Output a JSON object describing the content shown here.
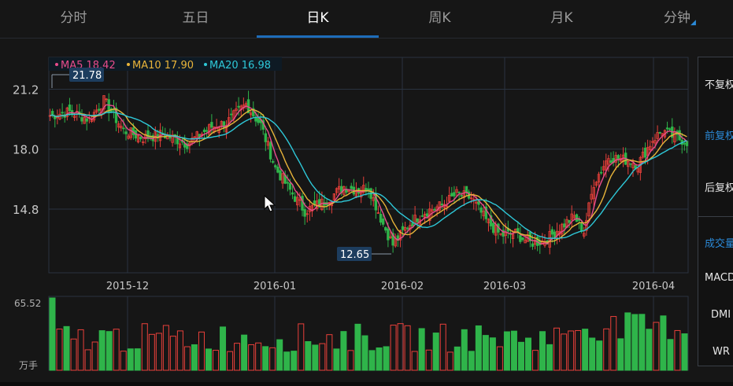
{
  "tabs": [
    {
      "label": "分时",
      "active": false
    },
    {
      "label": "五日",
      "active": false
    },
    {
      "label": "日K",
      "active": true
    },
    {
      "label": "周K",
      "active": false
    },
    {
      "label": "月K",
      "active": false
    },
    {
      "label": "分钟",
      "active": false,
      "has_dropdown": true
    }
  ],
  "legend": {
    "ma5": "MA5 18.42",
    "ma10": "MA10 17.90",
    "ma20": "MA20 16.98"
  },
  "colors": {
    "up": "#e8403a",
    "down": "#2fb44a",
    "ma5": "#e84c8c",
    "ma10": "#e8b43a",
    "ma20": "#2ec8d8",
    "accent": "#1e6db9",
    "grid": "#2a3340"
  },
  "price_axis": {
    "ticks": [
      "21.2",
      "18.0",
      "14.8"
    ],
    "values": [
      21.2,
      18.0,
      14.8
    ]
  },
  "date_axis": [
    "2015-12",
    "2016-01",
    "2016-02",
    "2016-03",
    "2016-04"
  ],
  "max_label": "21.78",
  "min_label": "12.65",
  "volume": {
    "max_label": "65.52",
    "unit_label": "万手"
  },
  "side_panel": {
    "items": [
      "不复权",
      "前复权",
      "后复权"
    ],
    "indicators": [
      "成交量",
      "MACD",
      "DMI",
      "WR"
    ]
  },
  "chart_data": {
    "type": "candlestick",
    "ylim": [
      11.4,
      22.9
    ],
    "ma_series": [
      {
        "name": "MA5",
        "value": 18.42
      },
      {
        "name": "MA10",
        "value": 17.9
      },
      {
        "name": "MA20",
        "value": 16.98
      }
    ],
    "max_price": 21.78,
    "min_price": 12.65,
    "volume_max": 65.52
  }
}
